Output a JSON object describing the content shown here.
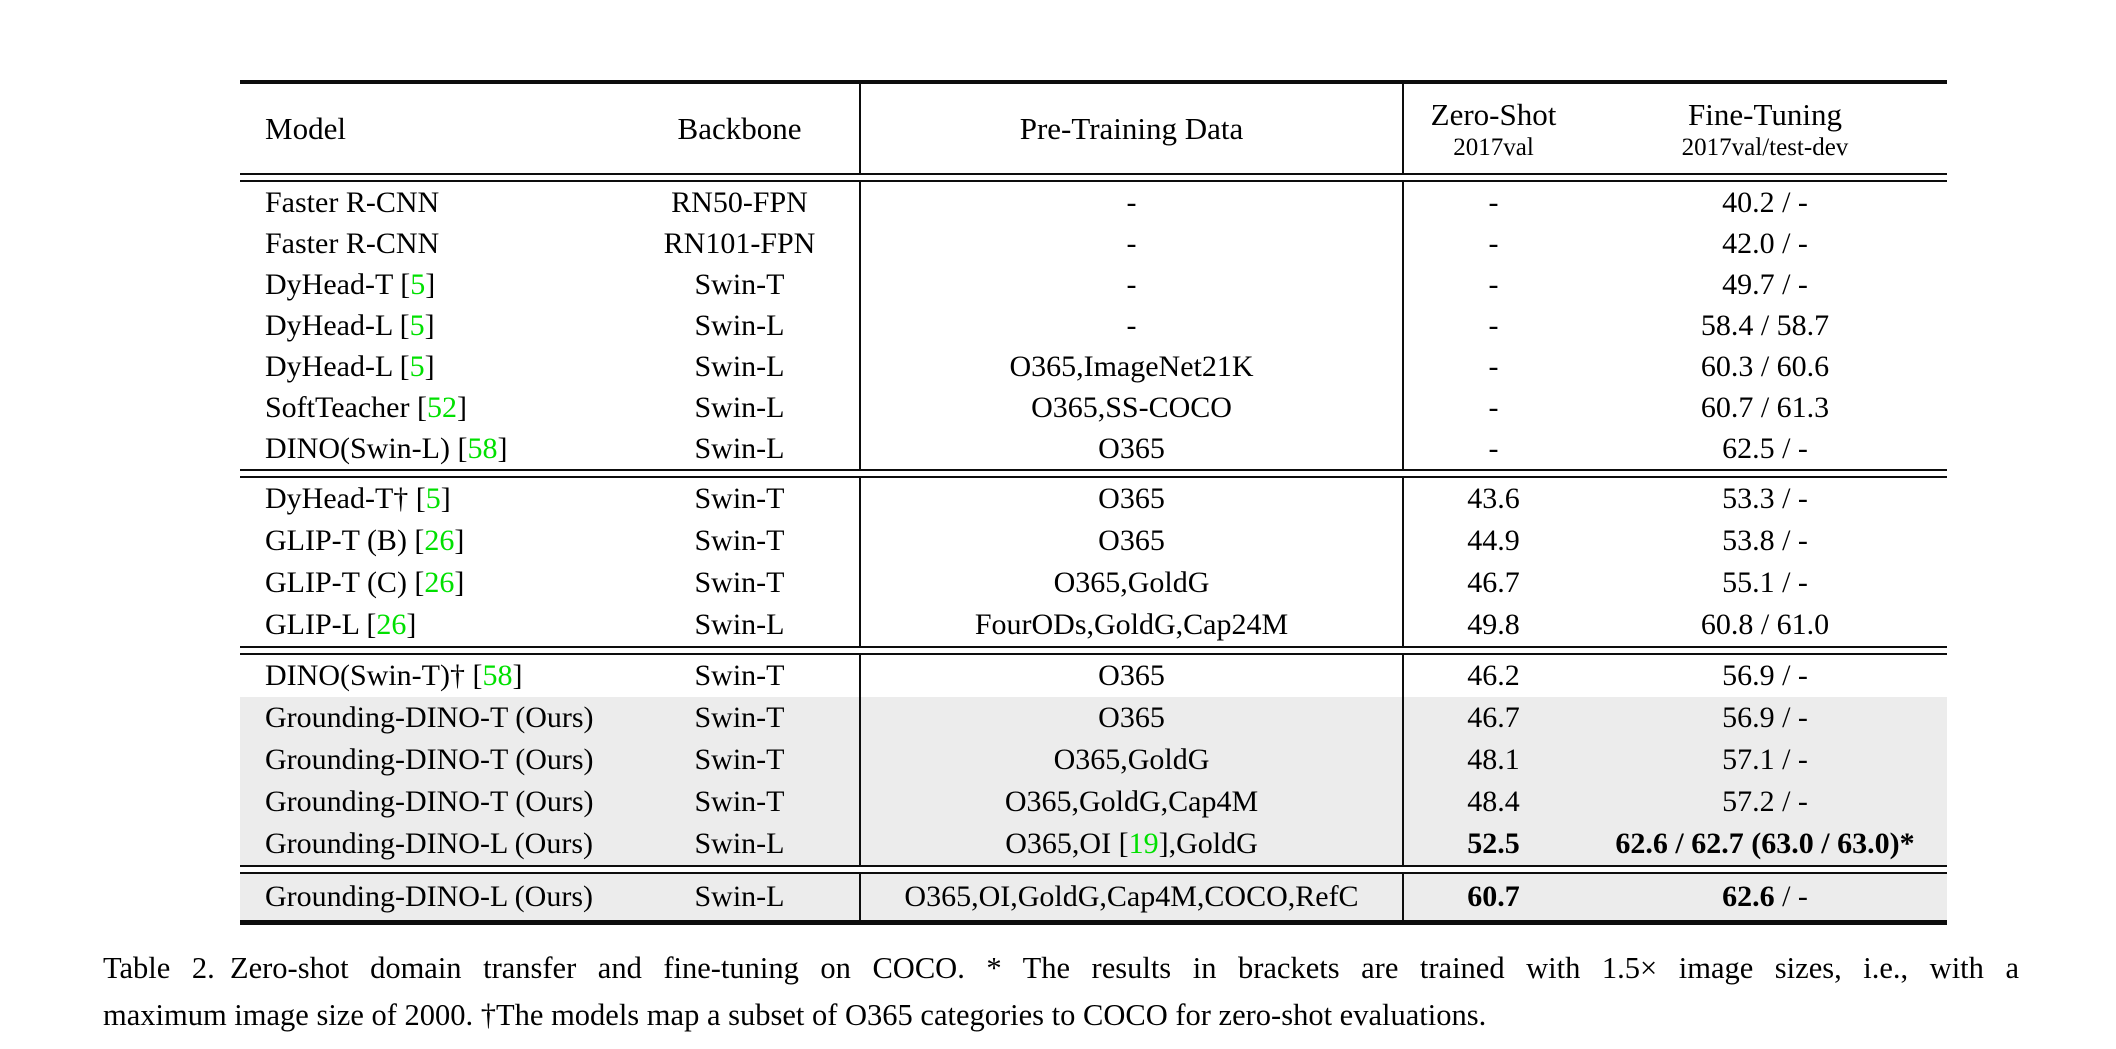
{
  "table": {
    "header": {
      "model": "Model",
      "backbone": "Backbone",
      "pretraining": "Pre-Training Data",
      "zero_shot": {
        "title": "Zero-Shot",
        "subtitle": "2017val"
      },
      "fine_tuning": {
        "title": "Fine-Tuning",
        "subtitle": "2017val/test-dev"
      }
    },
    "blocks": [
      {
        "rows": [
          {
            "model": {
              "pre": "Faster R-CNN",
              "cite": "",
              "post": ""
            },
            "backbone": "RN50-FPN",
            "pretraining": {
              "pre": "-",
              "cite": "",
              "post": ""
            },
            "zero_shot": {
              "text": "-",
              "bold": false
            },
            "fine_tuning": {
              "bold": "",
              "normal": "40.2 / -"
            },
            "highlight": false
          },
          {
            "model": {
              "pre": "Faster R-CNN",
              "cite": "",
              "post": ""
            },
            "backbone": "RN101-FPN",
            "pretraining": {
              "pre": "-",
              "cite": "",
              "post": ""
            },
            "zero_shot": {
              "text": "-",
              "bold": false
            },
            "fine_tuning": {
              "bold": "",
              "normal": "42.0 / -"
            },
            "highlight": false
          },
          {
            "model": {
              "pre": "DyHead-T [",
              "cite": "5",
              "post": "]"
            },
            "backbone": "Swin-T",
            "pretraining": {
              "pre": "-",
              "cite": "",
              "post": ""
            },
            "zero_shot": {
              "text": "-",
              "bold": false
            },
            "fine_tuning": {
              "bold": "",
              "normal": "49.7 / -"
            },
            "highlight": false
          },
          {
            "model": {
              "pre": "DyHead-L [",
              "cite": "5",
              "post": "]"
            },
            "backbone": "Swin-L",
            "pretraining": {
              "pre": "-",
              "cite": "",
              "post": ""
            },
            "zero_shot": {
              "text": "-",
              "bold": false
            },
            "fine_tuning": {
              "bold": "",
              "normal": "58.4 / 58.7"
            },
            "highlight": false
          },
          {
            "model": {
              "pre": "DyHead-L [",
              "cite": "5",
              "post": "]"
            },
            "backbone": "Swin-L",
            "pretraining": {
              "pre": "O365,ImageNet21K",
              "cite": "",
              "post": ""
            },
            "zero_shot": {
              "text": "-",
              "bold": false
            },
            "fine_tuning": {
              "bold": "",
              "normal": "60.3 / 60.6"
            },
            "highlight": false
          },
          {
            "model": {
              "pre": "SoftTeacher [",
              "cite": "52",
              "post": "]"
            },
            "backbone": "Swin-L",
            "pretraining": {
              "pre": "O365,SS-COCO",
              "cite": "",
              "post": ""
            },
            "zero_shot": {
              "text": "-",
              "bold": false
            },
            "fine_tuning": {
              "bold": "",
              "normal": "60.7 / 61.3"
            },
            "highlight": false
          },
          {
            "model": {
              "pre": "DINO(Swin-L) [",
              "cite": "58",
              "post": "]"
            },
            "backbone": "Swin-L",
            "pretraining": {
              "pre": "O365",
              "cite": "",
              "post": ""
            },
            "zero_shot": {
              "text": "-",
              "bold": false
            },
            "fine_tuning": {
              "bold": "",
              "normal": "62.5 / -"
            },
            "highlight": false
          }
        ]
      },
      {
        "rows": [
          {
            "model": {
              "pre": "DyHead-T† [",
              "cite": "5",
              "post": "]"
            },
            "backbone": "Swin-T",
            "pretraining": {
              "pre": "O365",
              "cite": "",
              "post": ""
            },
            "zero_shot": {
              "text": "43.6",
              "bold": false
            },
            "fine_tuning": {
              "bold": "",
              "normal": "53.3 / -"
            },
            "highlight": false
          },
          {
            "model": {
              "pre": "GLIP-T (B) [",
              "cite": "26",
              "post": "]"
            },
            "backbone": "Swin-T",
            "pretraining": {
              "pre": "O365",
              "cite": "",
              "post": ""
            },
            "zero_shot": {
              "text": "44.9",
              "bold": false
            },
            "fine_tuning": {
              "bold": "",
              "normal": "53.8 / -"
            },
            "highlight": false
          },
          {
            "model": {
              "pre": "GLIP-T (C) [",
              "cite": "26",
              "post": "]"
            },
            "backbone": "Swin-T",
            "pretraining": {
              "pre": "O365,GoldG",
              "cite": "",
              "post": ""
            },
            "zero_shot": {
              "text": "46.7",
              "bold": false
            },
            "fine_tuning": {
              "bold": "",
              "normal": "55.1 / -"
            },
            "highlight": false
          },
          {
            "model": {
              "pre": "GLIP-L [",
              "cite": "26",
              "post": "]"
            },
            "backbone": "Swin-L",
            "pretraining": {
              "pre": "FourODs,GoldG,Cap24M",
              "cite": "",
              "post": ""
            },
            "zero_shot": {
              "text": "49.8",
              "bold": false
            },
            "fine_tuning": {
              "bold": "",
              "normal": "60.8 / 61.0"
            },
            "highlight": false
          }
        ]
      },
      {
        "rows": [
          {
            "model": {
              "pre": "DINO(Swin-T)† [",
              "cite": "58",
              "post": "]"
            },
            "backbone": "Swin-T",
            "pretraining": {
              "pre": "O365",
              "cite": "",
              "post": ""
            },
            "zero_shot": {
              "text": "46.2",
              "bold": false
            },
            "fine_tuning": {
              "bold": "",
              "normal": "56.9 / -"
            },
            "highlight": false
          },
          {
            "model": {
              "pre": "Grounding-DINO-T (Ours)",
              "cite": "",
              "post": ""
            },
            "backbone": "Swin-T",
            "pretraining": {
              "pre": "O365",
              "cite": "",
              "post": ""
            },
            "zero_shot": {
              "text": "46.7",
              "bold": false
            },
            "fine_tuning": {
              "bold": "",
              "normal": "56.9 / -"
            },
            "highlight": true
          },
          {
            "model": {
              "pre": "Grounding-DINO-T (Ours)",
              "cite": "",
              "post": ""
            },
            "backbone": "Swin-T",
            "pretraining": {
              "pre": "O365,GoldG",
              "cite": "",
              "post": ""
            },
            "zero_shot": {
              "text": "48.1",
              "bold": false
            },
            "fine_tuning": {
              "bold": "",
              "normal": "57.1 / -"
            },
            "highlight": true
          },
          {
            "model": {
              "pre": "Grounding-DINO-T (Ours)",
              "cite": "",
              "post": ""
            },
            "backbone": "Swin-T",
            "pretraining": {
              "pre": "O365,GoldG,Cap4M",
              "cite": "",
              "post": ""
            },
            "zero_shot": {
              "text": "48.4",
              "bold": false
            },
            "fine_tuning": {
              "bold": "",
              "normal": "57.2 / -"
            },
            "highlight": true
          },
          {
            "model": {
              "pre": "Grounding-DINO-L (Ours)",
              "cite": "",
              "post": ""
            },
            "backbone": "Swin-L",
            "pretraining": {
              "pre": "O365,OI [",
              "cite": "19",
              "post": "],GoldG"
            },
            "zero_shot": {
              "text": "52.5",
              "bold": true
            },
            "fine_tuning": {
              "bold": "62.6 / 62.7 (63.0 / 63.0)*",
              "normal": ""
            },
            "highlight": true
          }
        ]
      },
      {
        "rows": [
          {
            "model": {
              "pre": "Grounding-DINO-L (Ours)",
              "cite": "",
              "post": ""
            },
            "backbone": "Swin-L",
            "pretraining": {
              "pre": "O365,OI,GoldG,Cap4M,COCO,RefC",
              "cite": "",
              "post": ""
            },
            "zero_shot": {
              "text": "60.7",
              "bold": true
            },
            "fine_tuning": {
              "bold": "62.6",
              "normal": " / -"
            },
            "highlight": true
          }
        ]
      }
    ]
  },
  "caption": {
    "line1": "Table 2. Zero-shot domain transfer and fine-tuning on COCO. * The results in brackets are trained with 1.5× image sizes, i.e., with a",
    "line2": "maximum image size of 2000. †The models map a subset of O365 categories to COCO for zero-shot evaluations."
  },
  "colors": {
    "citation_green": "#00e000",
    "highlight_gray": "#ececec",
    "rule_black": "#0d0d0d"
  }
}
